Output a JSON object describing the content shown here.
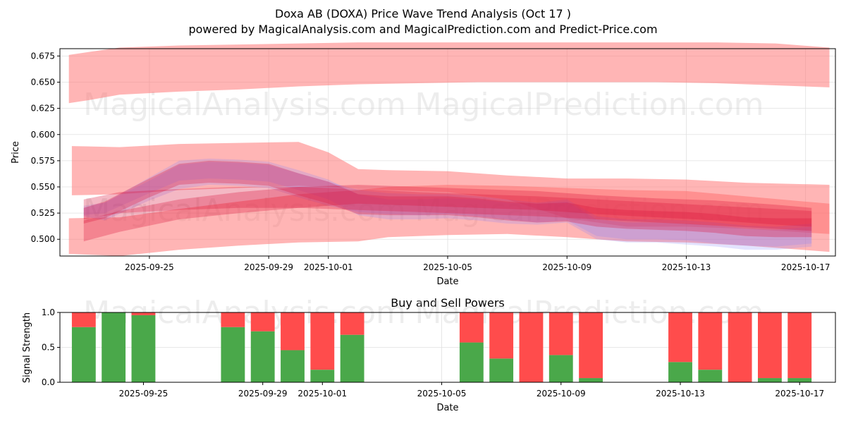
{
  "title_line1": "Doxa AB (DOXA) Price Wave Trend Analysis (Oct 17 )",
  "title_line2": "powered by MagicalAnalysis.com and MagicalPrediction.com and Predict-Price.com",
  "watermarks": [
    "MagicalAnalysis.com",
    "MagicalPrediction.com"
  ],
  "colors": {
    "red_band": "#ff6b6b",
    "blue_band": "#8080ff",
    "crimson_band": "#dc143c",
    "buy": "#4aa84a",
    "sell": "#ff4c4c",
    "grid": "#e0e0e0"
  },
  "chart_data": [
    {
      "type": "area",
      "title": "Doxa AB (DOXA) Price Wave Trend Analysis (Oct 17 )",
      "xlabel": "Date",
      "ylabel": "Price",
      "ylim": [
        0.484,
        0.682
      ],
      "xlim": [
        0,
        26
      ],
      "x_start_date": "2025-09-22",
      "xticks": [
        {
          "day": 3,
          "label": "2025-09-25"
        },
        {
          "day": 7,
          "label": "2025-09-29"
        },
        {
          "day": 9,
          "label": "2025-10-01"
        },
        {
          "day": 13,
          "label": "2025-10-05"
        },
        {
          "day": 17,
          "label": "2025-10-09"
        },
        {
          "day": 21,
          "label": "2025-10-13"
        },
        {
          "day": 25,
          "label": "2025-10-17"
        }
      ],
      "yticks": [
        0.5,
        0.525,
        0.55,
        0.575,
        0.6,
        0.625,
        0.65,
        0.675
      ],
      "series": [
        {
          "name": "upper red band",
          "color": "red",
          "opacity": 0.5,
          "x": [
            0.3,
            1,
            2,
            4,
            6,
            8,
            10,
            12,
            14,
            16,
            18,
            20,
            22,
            24,
            25.8
          ],
          "low": [
            0.63,
            0.633,
            0.638,
            0.641,
            0.643,
            0.646,
            0.648,
            0.649,
            0.65,
            0.65,
            0.65,
            0.65,
            0.649,
            0.647,
            0.645
          ],
          "high": [
            0.676,
            0.679,
            0.683,
            0.685,
            0.686,
            0.687,
            0.688,
            0.688,
            0.688,
            0.688,
            0.688,
            0.688,
            0.688,
            0.687,
            0.683
          ]
        },
        {
          "name": "wide red band",
          "color": "red",
          "opacity": 0.5,
          "x": [
            0.4,
            2,
            4,
            6,
            8,
            9,
            10,
            11,
            13,
            15,
            17,
            19,
            21,
            23,
            25.8
          ],
          "low": [
            0.542,
            0.543,
            0.547,
            0.549,
            0.551,
            0.55,
            0.548,
            0.547,
            0.545,
            0.538,
            0.52,
            0.512,
            0.512,
            0.51,
            0.505
          ],
          "high": [
            0.589,
            0.588,
            0.591,
            0.592,
            0.593,
            0.583,
            0.567,
            0.566,
            0.565,
            0.561,
            0.558,
            0.558,
            0.557,
            0.554,
            0.552
          ]
        },
        {
          "name": "lower red band",
          "color": "red",
          "opacity": 0.5,
          "x": [
            0.3,
            2,
            4,
            6,
            8,
            10,
            11,
            13,
            15,
            17,
            19,
            21,
            23,
            25.8
          ],
          "low": [
            0.486,
            0.484,
            0.49,
            0.494,
            0.497,
            0.498,
            0.502,
            0.504,
            0.505,
            0.502,
            0.498,
            0.497,
            0.494,
            0.488
          ],
          "high": [
            0.52,
            0.521,
            0.529,
            0.536,
            0.543,
            0.547,
            0.55,
            0.552,
            0.551,
            0.549,
            0.547,
            0.546,
            0.541,
            0.534
          ]
        },
        {
          "name": "blue band 1",
          "color": "blue",
          "opacity": 0.22,
          "x": [
            0.8,
            1.5,
            3,
            4,
            5,
            6,
            7,
            8,
            9,
            10,
            11,
            12,
            13,
            14,
            15,
            16,
            17,
            18,
            19,
            20,
            21,
            22,
            23,
            24,
            25.2
          ],
          "low": [
            0.523,
            0.525,
            0.544,
            0.556,
            0.558,
            0.557,
            0.555,
            0.547,
            0.538,
            0.523,
            0.519,
            0.519,
            0.52,
            0.518,
            0.515,
            0.514,
            0.516,
            0.5,
            0.497,
            0.497,
            0.495,
            0.493,
            0.49,
            0.49,
            0.493
          ],
          "high": [
            0.53,
            0.535,
            0.559,
            0.575,
            0.577,
            0.576,
            0.574,
            0.566,
            0.557,
            0.543,
            0.538,
            0.538,
            0.539,
            0.538,
            0.535,
            0.534,
            0.536,
            0.519,
            0.516,
            0.516,
            0.515,
            0.513,
            0.51,
            0.509,
            0.512
          ]
        },
        {
          "name": "blue band 2",
          "color": "blue",
          "opacity": 0.22,
          "x": [
            0.8,
            1.5,
            3,
            4,
            5,
            6,
            7,
            8,
            9,
            10,
            11,
            12,
            13,
            14,
            15,
            16,
            17,
            18,
            19,
            20,
            21,
            22,
            23,
            24,
            25.2
          ],
          "low": [
            0.522,
            0.518,
            0.537,
            0.548,
            0.552,
            0.551,
            0.549,
            0.54,
            0.532,
            0.526,
            0.524,
            0.523,
            0.524,
            0.522,
            0.519,
            0.516,
            0.518,
            0.503,
            0.5,
            0.5,
            0.499,
            0.496,
            0.494,
            0.493,
            0.496
          ],
          "high": [
            0.532,
            0.535,
            0.556,
            0.571,
            0.574,
            0.573,
            0.571,
            0.563,
            0.555,
            0.547,
            0.544,
            0.543,
            0.543,
            0.541,
            0.538,
            0.535,
            0.538,
            0.522,
            0.519,
            0.519,
            0.518,
            0.516,
            0.513,
            0.512,
            0.515
          ]
        },
        {
          "name": "crimson band 1",
          "color": "crimson",
          "opacity": 0.3,
          "x": [
            0.8,
            1.5,
            3,
            4,
            5,
            6,
            7,
            8,
            9,
            10,
            11,
            12,
            13,
            14,
            15,
            16,
            17,
            18,
            19,
            20,
            21,
            22,
            23,
            24,
            25.2
          ],
          "low": [
            0.515,
            0.52,
            0.54,
            0.552,
            0.554,
            0.553,
            0.551,
            0.542,
            0.534,
            0.524,
            0.523,
            0.523,
            0.523,
            0.521,
            0.518,
            0.516,
            0.517,
            0.512,
            0.51,
            0.509,
            0.508,
            0.506,
            0.503,
            0.502,
            0.502
          ],
          "high": [
            0.53,
            0.536,
            0.558,
            0.572,
            0.575,
            0.574,
            0.572,
            0.563,
            0.555,
            0.543,
            0.541,
            0.541,
            0.541,
            0.539,
            0.536,
            0.534,
            0.535,
            0.53,
            0.528,
            0.527,
            0.526,
            0.524,
            0.521,
            0.52,
            0.52
          ]
        },
        {
          "name": "crimson band 2",
          "color": "crimson",
          "opacity": 0.3,
          "x": [
            0.8,
            2,
            4,
            6,
            8,
            10,
            12,
            14,
            16,
            18,
            20,
            22,
            24,
            25.2
          ],
          "low": [
            0.498,
            0.507,
            0.519,
            0.525,
            0.53,
            0.534,
            0.532,
            0.53,
            0.528,
            0.524,
            0.521,
            0.518,
            0.514,
            0.512
          ],
          "high": [
            0.518,
            0.527,
            0.538,
            0.545,
            0.55,
            0.552,
            0.55,
            0.548,
            0.546,
            0.542,
            0.539,
            0.537,
            0.533,
            0.53
          ]
        },
        {
          "name": "crimson band 3",
          "color": "crimson",
          "opacity": 0.3,
          "x": [
            0.8,
            2,
            4,
            6,
            8,
            10,
            12,
            14,
            16,
            18,
            20,
            22,
            24,
            25.2
          ],
          "low": [
            0.519,
            0.525,
            0.528,
            0.53,
            0.53,
            0.528,
            0.526,
            0.524,
            0.522,
            0.519,
            0.516,
            0.513,
            0.51,
            0.508
          ],
          "high": [
            0.538,
            0.545,
            0.548,
            0.55,
            0.55,
            0.548,
            0.545,
            0.543,
            0.541,
            0.538,
            0.535,
            0.532,
            0.529,
            0.527
          ]
        }
      ]
    },
    {
      "type": "bar",
      "title": "Buy and Sell Powers",
      "xlabel": "Date",
      "ylabel": "Signal Strength",
      "ylim": [
        0,
        1.0
      ],
      "yticks": [
        {
          "value": 0,
          "label": "0.0"
        },
        {
          "value": 0.5,
          "label": "0.5"
        },
        {
          "value": 1.0,
          "label": "1.0"
        }
      ],
      "xticks": [
        {
          "day": 3,
          "label": "2025-09-25"
        },
        {
          "day": 7,
          "label": "2025-09-29"
        },
        {
          "day": 9,
          "label": "2025-10-01"
        },
        {
          "day": 13,
          "label": "2025-10-05"
        },
        {
          "day": 17,
          "label": "2025-10-09"
        },
        {
          "day": 21,
          "label": "2025-10-13"
        },
        {
          "day": 25,
          "label": "2025-10-17"
        }
      ],
      "x_days": [
        1,
        2,
        3,
        6,
        7,
        8,
        9,
        10,
        14,
        15,
        16,
        17,
        18,
        21,
        22,
        23,
        24,
        25
      ],
      "series": [
        {
          "name": "Buy",
          "values": [
            0.79,
            1.0,
            0.96,
            0.79,
            0.73,
            0.46,
            0.18,
            0.68,
            0.57,
            0.34,
            0.0,
            0.39,
            0.06,
            0.29,
            0.18,
            0.0,
            0.06,
            0.06
          ]
        },
        {
          "name": "Sell",
          "values": [
            0.21,
            0.0,
            0.04,
            0.21,
            0.27,
            0.54,
            0.82,
            0.32,
            0.43,
            0.66,
            1.0,
            0.61,
            0.94,
            0.71,
            0.82,
            1.0,
            0.94,
            0.94
          ]
        }
      ]
    }
  ]
}
